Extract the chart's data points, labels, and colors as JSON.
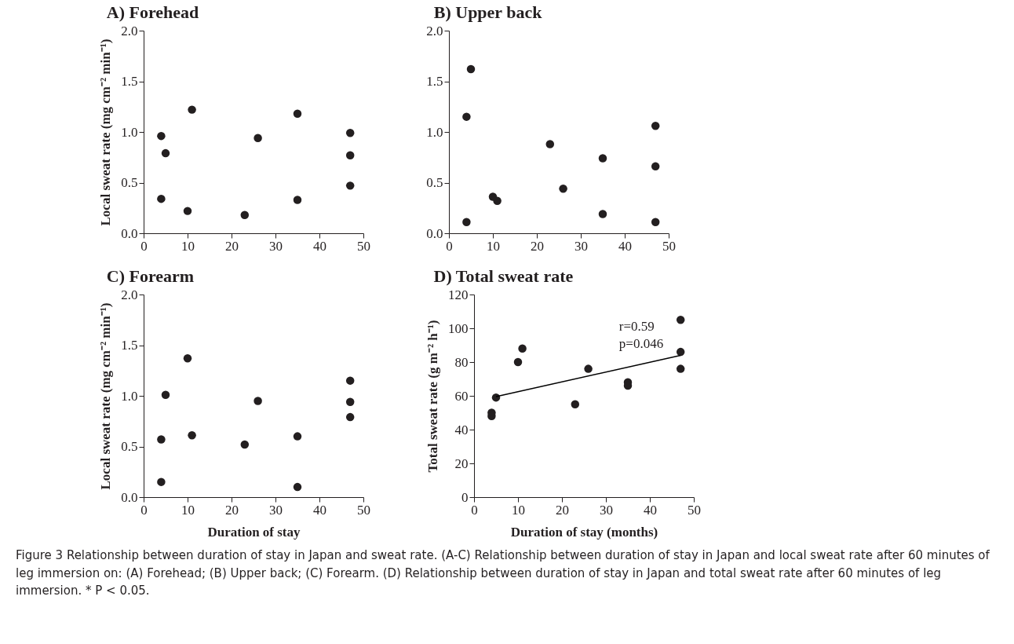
{
  "chart_data": [
    {
      "type": "scatter",
      "title": "A) Forehead",
      "ylabel": "Local sweat rate (mg cm⁻² min⁻¹)",
      "xlim": [
        0,
        50
      ],
      "xticks": [
        0,
        10,
        20,
        30,
        40,
        50
      ],
      "ylim": [
        0,
        2
      ],
      "yticks": [
        {
          "value": 0,
          "label": "0.0"
        },
        0.5,
        {
          "value": 1,
          "label": "1.0"
        },
        1.5,
        {
          "value": 2,
          "label": "2.0"
        }
      ],
      "grid": false,
      "marker": "circle",
      "series": [
        {
          "color": "#231f20",
          "x": [
            4,
            5,
            4,
            10,
            11,
            23,
            26,
            35,
            35,
            47,
            47,
            47
          ],
          "values": [
            0.96,
            0.79,
            0.34,
            0.22,
            1.22,
            0.18,
            0.94,
            1.18,
            0.33,
            0.99,
            0.77,
            0.47
          ]
        }
      ]
    },
    {
      "type": "scatter",
      "title": "B) Upper back",
      "xlim": [
        0,
        50
      ],
      "xticks": [
        0,
        10,
        20,
        30,
        40,
        50
      ],
      "ylim": [
        0,
        2
      ],
      "yticks": [
        {
          "value": 0,
          "label": "0.0"
        },
        0.5,
        {
          "value": 1,
          "label": "1.0"
        },
        1.5,
        {
          "value": 2,
          "label": "2.0"
        }
      ],
      "grid": false,
      "marker": "circle",
      "series": [
        {
          "color": "#231f20",
          "x": [
            4,
            5,
            4,
            10,
            11,
            23,
            26,
            35,
            35,
            47,
            47,
            47
          ],
          "values": [
            1.15,
            1.62,
            0.11,
            0.36,
            0.32,
            0.88,
            0.44,
            0.74,
            0.19,
            1.06,
            0.66,
            0.11
          ]
        }
      ]
    },
    {
      "type": "scatter",
      "title": "C) Forearm",
      "xlabel": "Duration of stay",
      "ylabel": "Local sweat rate (mg cm⁻² min⁻¹)",
      "xlim": [
        0,
        50
      ],
      "xticks": [
        0,
        10,
        20,
        30,
        40,
        50
      ],
      "ylim": [
        0,
        2
      ],
      "yticks": [
        {
          "value": 0,
          "label": "0.0"
        },
        0.5,
        {
          "value": 1,
          "label": "1.0"
        },
        1.5,
        {
          "value": 2,
          "label": "2.0"
        }
      ],
      "grid": false,
      "marker": "circle",
      "series": [
        {
          "color": "#231f20",
          "x": [
            4,
            4,
            5,
            10,
            11,
            23,
            26,
            35,
            35,
            47,
            47,
            47
          ],
          "values": [
            0.57,
            0.15,
            1.01,
            1.37,
            0.61,
            0.52,
            0.95,
            0.6,
            0.1,
            1.15,
            0.94,
            0.79
          ]
        }
      ]
    },
    {
      "type": "scatter",
      "title": "D) Total sweat rate",
      "xlabel": "Duration of stay (months)",
      "ylabel": "Total sweat rate (g m⁻² h⁻¹)",
      "xlim": [
        0,
        50
      ],
      "xticks": [
        0,
        10,
        20,
        30,
        40,
        50
      ],
      "ylim": [
        0,
        120
      ],
      "yticks": [
        0,
        20,
        40,
        60,
        80,
        100,
        120
      ],
      "grid": false,
      "series": [
        {
          "color": "#231f20",
          "marker": "circle",
          "x": [
            4,
            4,
            5,
            10,
            11,
            23,
            26,
            35,
            35,
            47,
            47,
            47
          ],
          "values": [
            50,
            48,
            59,
            80,
            88,
            55,
            76,
            68,
            66,
            105,
            86,
            76
          ]
        },
        {
          "type": "line",
          "color": "#000000",
          "marker": "none",
          "x": [
            5,
            47
          ],
          "values": [
            59.5,
            84
          ]
        }
      ],
      "annotations": [
        "r=0.59",
        "p=0.046",
        "Figure 3 Relationship between duration of stay in Japan and sweat rate. (A-C) Relationship between duration of stay in Japan and local sweat rate after 60 minutes of leg immersion on: (A) Forehead; (B) Upper back; (C) Forearm. (D) Relationship between duration of stay in Japan and total sweat rate after 60 minutes of leg immersion. * P < 0.05."
      ]
    }
  ]
}
